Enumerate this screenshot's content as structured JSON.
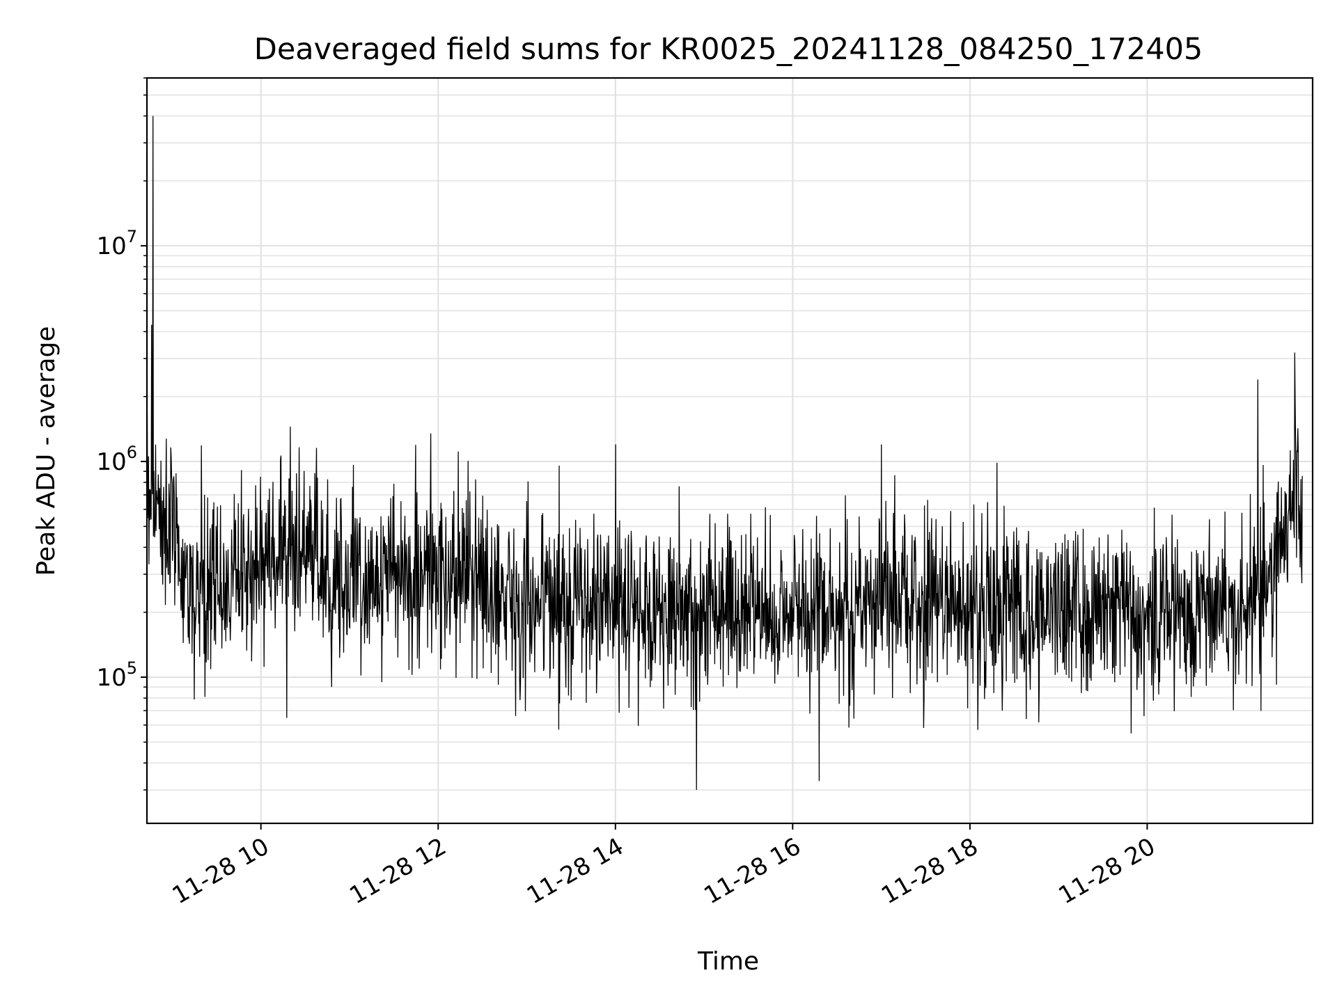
{
  "chart_data": {
    "type": "line",
    "title": "Deaveraged field sums for KR0025_20241128_084250_172405",
    "xlabel": "Time",
    "ylabel": "Peak ADU - average",
    "x_start": "11-28 08:42:50",
    "x_end": "11-28 21:45:00",
    "xlim": [
      "11-28 08:42:50",
      "11-28 21:52:00"
    ],
    "y_scale": "log",
    "ylim": [
      21000,
      60000000
    ],
    "x_ticks": [
      {
        "value": "11-28 10:00",
        "label": "11-28 10"
      },
      {
        "value": "11-28 12:00",
        "label": "11-28 12"
      },
      {
        "value": "11-28 14:00",
        "label": "11-28 14"
      },
      {
        "value": "11-28 16:00",
        "label": "11-28 16"
      },
      {
        "value": "11-28 18:00",
        "label": "11-28 18"
      },
      {
        "value": "11-28 20:00",
        "label": "11-28 20"
      }
    ],
    "y_ticks": [
      {
        "value": 100000,
        "base": "10",
        "exp": "5"
      },
      {
        "value": 1000000,
        "base": "10",
        "exp": "6"
      },
      {
        "value": 10000000,
        "base": "10",
        "exp": "7"
      }
    ],
    "grid": true,
    "grid_minor": true,
    "line_color": "#000000",
    "legend": "none",
    "series": [
      {
        "x": [
          "11-28 08:43",
          "11-28 09:00",
          "11-28 09:15",
          "11-28 09:30",
          "11-28 10:00",
          "11-28 10:20",
          "11-28 11:00",
          "11-28 11:30",
          "11-28 12:00",
          "11-28 12:30",
          "11-28 13:00",
          "11-28 14:00",
          "11-28 15:00",
          "11-28 16:00",
          "11-28 17:00",
          "11-28 18:00",
          "11-28 19:00",
          "11-28 20:00",
          "11-28 21:00",
          "11-28 21:20",
          "11-28 21:35",
          "11-28 21:45"
        ],
        "values": [
          800000,
          450000,
          220000,
          260000,
          350000,
          400000,
          280000,
          300000,
          290000,
          270000,
          230000,
          210000,
          210000,
          200000,
          230000,
          210000,
          210000,
          200000,
          220000,
          250000,
          550000,
          700000
        ],
        "extremes": [
          {
            "x": "11-28 08:47",
            "y": 40000000
          },
          {
            "x": "11-28 08:46",
            "y": 4300000
          },
          {
            "x": "11-28 10:20",
            "y": 1450000
          },
          {
            "x": "11-28 11:55",
            "y": 1350000
          },
          {
            "x": "11-28 14:00",
            "y": 1200000
          },
          {
            "x": "11-28 14:55",
            "y": 30000
          },
          {
            "x": "11-28 16:18",
            "y": 33000
          },
          {
            "x": "11-28 17:00",
            "y": 1200000
          },
          {
            "x": "11-28 21:15",
            "y": 2400000
          },
          {
            "x": "11-28 21:40",
            "y": 3200000
          }
        ]
      }
    ]
  }
}
